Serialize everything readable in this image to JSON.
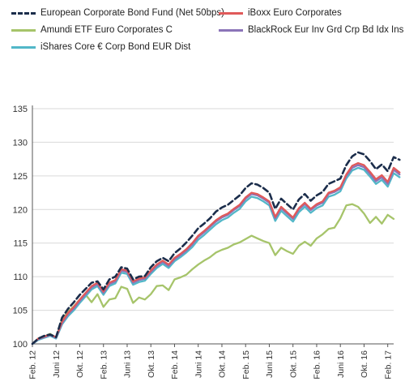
{
  "chart_data": {
    "type": "line",
    "title": "",
    "xlabel": "",
    "ylabel": "",
    "ylim": [
      100,
      135
    ],
    "yticks": [
      100,
      105,
      110,
      115,
      120,
      125,
      130,
      135
    ],
    "x_start_month": "2012-02",
    "x_ticks": [
      {
        "label": "Feb. 12",
        "month": "2012-02"
      },
      {
        "label": "Juni 12",
        "month": "2012-06"
      },
      {
        "label": "Okt. 12",
        "month": "2012-10"
      },
      {
        "label": "Feb. 13",
        "month": "2013-02"
      },
      {
        "label": "Juni 13",
        "month": "2013-06"
      },
      {
        "label": "Okt. 13",
        "month": "2013-10"
      },
      {
        "label": "Feb. 14",
        "month": "2014-02"
      },
      {
        "label": "Juni 14",
        "month": "2014-06"
      },
      {
        "label": "Okt. 14",
        "month": "2014-10"
      },
      {
        "label": "Feb. 15",
        "month": "2015-02"
      },
      {
        "label": "Juni 15",
        "month": "2015-06"
      },
      {
        "label": "Okt. 15",
        "month": "2015-10"
      },
      {
        "label": "Feb. 16",
        "month": "2016-02"
      },
      {
        "label": "Juni 16",
        "month": "2016-06"
      },
      {
        "label": "Okt. 16",
        "month": "2016-10"
      },
      {
        "label": "Feb. 17",
        "month": "2017-02"
      }
    ],
    "grid": "horizontal",
    "legend_position": "top",
    "series": [
      {
        "name": "Amundi ETF Euro Corporates C",
        "color": "#a6c46a",
        "style": "solid",
        "values": [
          100.0,
          100.8,
          101.1,
          101.5,
          100.9,
          103.6,
          104.8,
          105.6,
          106.6,
          107.3,
          106.2,
          107.4,
          105.5,
          106.6,
          106.8,
          108.5,
          108.2,
          106.1,
          106.9,
          106.6,
          107.4,
          108.6,
          108.7,
          108.0,
          109.6,
          109.9,
          110.3,
          111.1,
          111.8,
          112.4,
          112.9,
          113.6,
          114.0,
          114.3,
          114.8,
          115.1,
          115.6,
          116.1,
          115.7,
          115.3,
          115.0,
          113.2,
          114.3,
          113.8,
          113.4,
          114.6,
          115.2,
          114.6,
          115.7,
          116.3,
          117.1,
          117.3,
          118.7,
          120.6,
          120.8,
          120.4,
          119.4,
          118.0,
          118.9,
          117.9,
          119.2,
          118.6
        ]
      },
      {
        "name": "iShares Core € Corp Bond EUR Dist",
        "color": "#52b7c8",
        "style": "solid",
        "values": [
          100.0,
          100.6,
          100.9,
          101.2,
          100.8,
          102.9,
          104.1,
          105.0,
          106.1,
          107.1,
          108.1,
          108.6,
          107.3,
          108.6,
          109.0,
          110.6,
          110.4,
          108.8,
          109.2,
          109.4,
          110.4,
          111.3,
          111.9,
          111.3,
          112.3,
          112.9,
          113.6,
          114.4,
          115.5,
          116.2,
          117.0,
          117.8,
          118.4,
          118.8,
          119.5,
          120.1,
          121.2,
          121.9,
          121.7,
          121.2,
          120.6,
          118.3,
          119.8,
          119.0,
          118.2,
          119.6,
          120.4,
          119.5,
          120.2,
          120.6,
          121.9,
          122.2,
          122.7,
          124.6,
          125.8,
          126.2,
          125.9,
          124.9,
          123.8,
          124.4,
          123.4,
          125.4,
          124.8
        ]
      },
      {
        "name": "BlackRock Eur Inv Grd Crp Bd Idx Ins Acc",
        "color": "#8b74b8",
        "style": "solid",
        "values": [
          100.0,
          100.7,
          101.0,
          101.3,
          100.9,
          103.1,
          104.4,
          105.3,
          106.4,
          107.4,
          108.4,
          108.9,
          107.6,
          108.9,
          109.3,
          110.9,
          110.7,
          109.1,
          109.5,
          109.7,
          110.7,
          111.6,
          112.2,
          111.6,
          112.6,
          113.2,
          113.9,
          114.8,
          115.9,
          116.6,
          117.4,
          118.2,
          118.8,
          119.2,
          119.9,
          120.5,
          121.6,
          122.3,
          122.1,
          121.6,
          121.0,
          118.7,
          120.2,
          119.4,
          118.6,
          120.0,
          120.8,
          119.9,
          120.6,
          121.0,
          122.3,
          122.6,
          123.1,
          125.0,
          126.2,
          126.6,
          126.3,
          125.3,
          124.2,
          124.8,
          123.8,
          125.9,
          125.2
        ]
      },
      {
        "name": "iBoxx Euro Corporates",
        "color": "#e05a5a",
        "style": "solid",
        "values": [
          100.0,
          100.8,
          101.1,
          101.4,
          101.0,
          103.3,
          104.6,
          105.5,
          106.6,
          107.6,
          108.6,
          109.1,
          107.8,
          109.1,
          109.5,
          111.1,
          110.9,
          109.3,
          109.7,
          109.9,
          110.9,
          111.8,
          112.4,
          111.8,
          112.8,
          113.4,
          114.1,
          115.0,
          116.1,
          116.8,
          117.6,
          118.4,
          119.0,
          119.4,
          120.1,
          120.7,
          121.8,
          122.5,
          122.3,
          121.8,
          121.2,
          118.9,
          120.4,
          119.6,
          118.8,
          120.2,
          121.0,
          120.1,
          120.8,
          121.2,
          122.5,
          122.8,
          123.3,
          125.2,
          126.5,
          126.9,
          126.6,
          125.6,
          124.5,
          125.1,
          124.1,
          126.2,
          125.5
        ]
      },
      {
        "name": "European Corporate Bond Fund (Net 50bps)",
        "color": "#1b2d4b",
        "style": "dashed",
        "values": [
          100.0,
          100.8,
          101.2,
          101.4,
          101.0,
          103.9,
          105.2,
          106.2,
          107.3,
          108.2,
          109.1,
          109.3,
          108.1,
          109.6,
          110.0,
          111.4,
          111.2,
          109.6,
          110.0,
          110.1,
          111.4,
          112.3,
          112.8,
          112.3,
          113.5,
          114.2,
          115.1,
          116.1,
          117.2,
          117.9,
          118.7,
          119.7,
          120.3,
          120.7,
          121.4,
          122.1,
          123.2,
          123.9,
          123.7,
          123.2,
          122.5,
          120.1,
          121.6,
          120.8,
          120.0,
          121.5,
          122.3,
          121.3,
          122.1,
          122.6,
          123.8,
          124.2,
          124.6,
          126.6,
          127.9,
          128.5,
          128.2,
          127.2,
          126.0,
          126.7,
          125.7,
          127.8,
          127.4
        ]
      }
    ]
  },
  "legend": {
    "items": [
      {
        "label": "European Corporate Bond Fund (Net 50bps)",
        "color": "#1b2d4b",
        "style": "dashed"
      },
      {
        "label": "iBoxx Euro Corporates",
        "color": "#e05a5a",
        "style": "solid"
      },
      {
        "label": "Amundi ETF Euro Corporates C",
        "color": "#a6c46a",
        "style": "solid"
      },
      {
        "label": "BlackRock Eur Inv Grd Crp Bd Idx Ins Acc",
        "color": "#8b74b8",
        "style": "solid"
      },
      {
        "label": "iShares Core € Corp Bond EUR Dist",
        "color": "#52b7c8",
        "style": "solid"
      }
    ]
  }
}
